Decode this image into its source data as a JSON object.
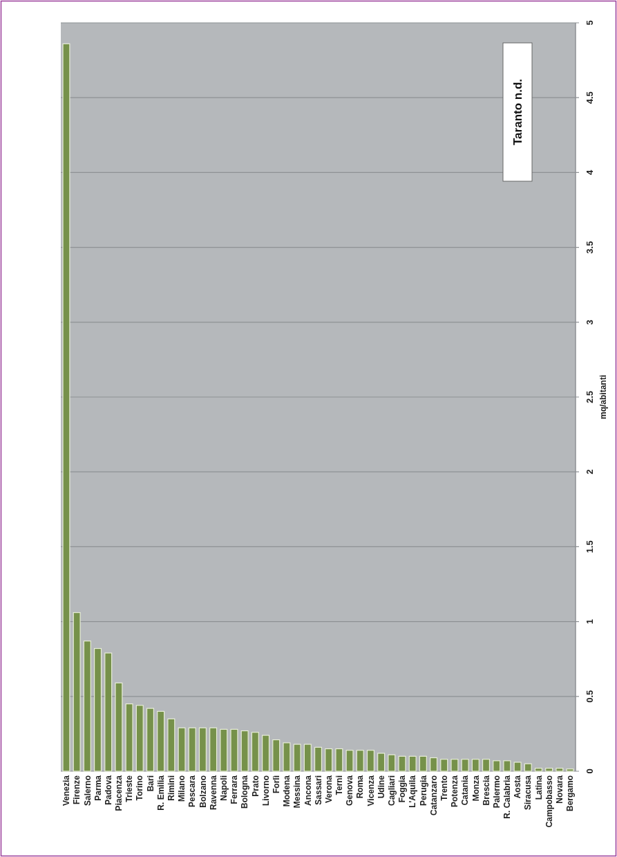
{
  "chart_data": {
    "type": "bar",
    "ylabel": "mq/abitanti",
    "annotations": [
      "Taranto n.d."
    ],
    "categories": [
      "Venezia",
      "Firenze",
      "Salerno",
      "Parma",
      "Padova",
      "Piacenza",
      "Trieste",
      "Torino",
      "Bari",
      "R. Emilia",
      "Rimini",
      "Milano",
      "Pescara",
      "Bolzano",
      "Ravenna",
      "Napoli",
      "Ferrara",
      "Bologna",
      "Prato",
      "Livorno",
      "Forlì",
      "Modena",
      "Messina",
      "Ancona",
      "Sassari",
      "Verona",
      "Terni",
      "Genova",
      "Roma",
      "Vicenza",
      "Udine",
      "Cagliari",
      "Foggia",
      "L'Aquila",
      "Perugia",
      "Catanzaro",
      "Trento",
      "Potenza",
      "Catania",
      "Monza",
      "Brescia",
      "Palermo",
      "R. Calabria",
      "Aosta",
      "Siracusa",
      "Latina",
      "Campobasso",
      "Novara",
      "Bergamo"
    ],
    "values": [
      4.86,
      1.06,
      0.87,
      0.82,
      0.79,
      0.59,
      0.45,
      0.44,
      0.42,
      0.4,
      0.35,
      0.29,
      0.29,
      0.29,
      0.29,
      0.28,
      0.28,
      0.27,
      0.26,
      0.24,
      0.21,
      0.19,
      0.18,
      0.18,
      0.16,
      0.15,
      0.15,
      0.14,
      0.14,
      0.14,
      0.12,
      0.11,
      0.1,
      0.1,
      0.1,
      0.09,
      0.08,
      0.08,
      0.08,
      0.08,
      0.08,
      0.07,
      0.07,
      0.06,
      0.05,
      0.02,
      0.02,
      0.02,
      0.015
    ],
    "color": "#76914a",
    "ylim": [
      0,
      5
    ],
    "yticks": [
      0,
      0.5,
      1,
      1.5,
      2,
      2.5,
      3,
      3.5,
      4,
      4.5,
      5
    ],
    "grid": "y"
  }
}
